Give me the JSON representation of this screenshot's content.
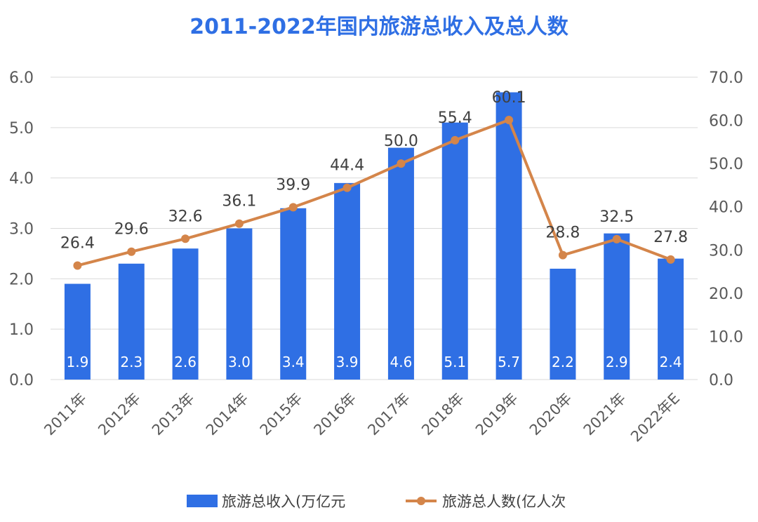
{
  "chart_data": {
    "type": "bar",
    "title": "2011-2022年国内旅游总收入及总人数",
    "categories": [
      "2011年",
      "2012年",
      "2013年",
      "2014年",
      "2015年",
      "2016年",
      "2017年",
      "2018年",
      "2019年",
      "2020年",
      "2021年",
      "2022年E"
    ],
    "series": [
      {
        "name": "旅游总收入(万亿元",
        "type": "bar",
        "axis": "left",
        "values": [
          1.9,
          2.3,
          2.6,
          3.0,
          3.4,
          3.9,
          4.6,
          5.1,
          5.7,
          2.2,
          2.9,
          2.4
        ],
        "labels": [
          "1.9",
          "2.3",
          "2.6",
          "3.0",
          "3.4",
          "3.9",
          "4.6",
          "5.1",
          "5.7",
          "2.2",
          "2.9",
          "2.4"
        ],
        "color": "#2f6fe4"
      },
      {
        "name": "旅游总人数(亿人次",
        "type": "line",
        "axis": "right",
        "values": [
          26.4,
          29.6,
          32.6,
          36.1,
          39.9,
          44.4,
          50.0,
          55.4,
          60.1,
          28.8,
          32.5,
          27.8
        ],
        "labels": [
          "26.4",
          "29.6",
          "32.6",
          "36.1",
          "39.9",
          "44.4",
          "50.0",
          "55.4",
          "60.1",
          "28.8",
          "32.5",
          "27.8"
        ],
        "color": "#d4854a"
      }
    ],
    "y_left": {
      "ylim": [
        0,
        6
      ],
      "ticks": [
        "0.0",
        "1.0",
        "2.0",
        "3.0",
        "4.0",
        "5.0",
        "6.0"
      ]
    },
    "y_right": {
      "ylim": [
        0,
        70
      ],
      "ticks": [
        "0.0",
        "10.0",
        "20.0",
        "30.0",
        "40.0",
        "50.0",
        "60.0",
        "70.0"
      ]
    },
    "grid": true,
    "legend_position": "bottom",
    "colors": {
      "title": "#2f6fe4",
      "grid": "#d9d9d9",
      "axis_text": "#595959"
    }
  }
}
